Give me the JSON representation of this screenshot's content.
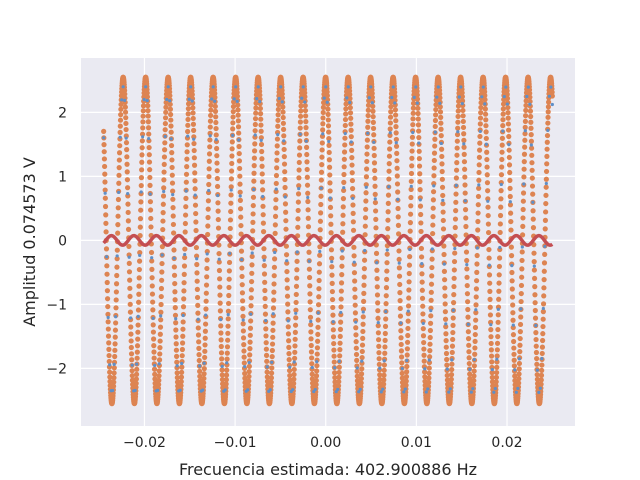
{
  "chart_data": {
    "type": "scatter",
    "title": "",
    "xlabel": "Frecuencia estimada: 402.900886 Hz",
    "ylabel": "Amplitud 0.074573 V",
    "xlim": [
      -0.027,
      0.0275
    ],
    "ylim": [
      -2.9,
      2.85
    ],
    "xticks": [
      -0.02,
      -0.01,
      0.0,
      0.01,
      0.02
    ],
    "xtick_labels": [
      "−0.02",
      "−0.01",
      "0.00",
      "0.01",
      "0.02"
    ],
    "yticks": [
      -2,
      -1,
      0,
      1,
      2
    ],
    "ytick_labels": [
      "−2",
      "−1",
      "0",
      "1",
      "2"
    ],
    "grid": true,
    "background": "#eaeaf2",
    "series": [
      {
        "kind": "scatter",
        "color": "#dd8452",
        "x_range": [
          -0.0245,
          0.025
        ],
        "amplitude": 2.55,
        "frequency_hz": 402.900886,
        "phase_rad": 1.6,
        "samples": 2400
      },
      {
        "kind": "scatter",
        "color": "#5f8fc7",
        "x_range": [
          -0.0245,
          0.025
        ],
        "amplitude": 2.4,
        "frequency_hz": 402.900886,
        "phase_rad": 1.6,
        "samples": 300
      },
      {
        "kind": "line",
        "color": "#c44e52",
        "x_range": [
          -0.0245,
          0.025
        ],
        "amplitude": 0.074573,
        "frequency_hz": 402.900886,
        "phase_rad": -1.4,
        "samples": 1000
      }
    ]
  }
}
